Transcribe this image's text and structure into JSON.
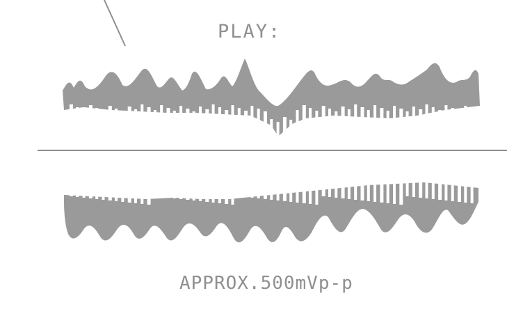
{
  "figure": {
    "mode_label": "PLAY:",
    "level_label": "APPROX.500mVp-p",
    "ink_color": "#8f8f8f",
    "envelope_color": "#9a9a9a",
    "background_color": "#ffffff"
  }
}
